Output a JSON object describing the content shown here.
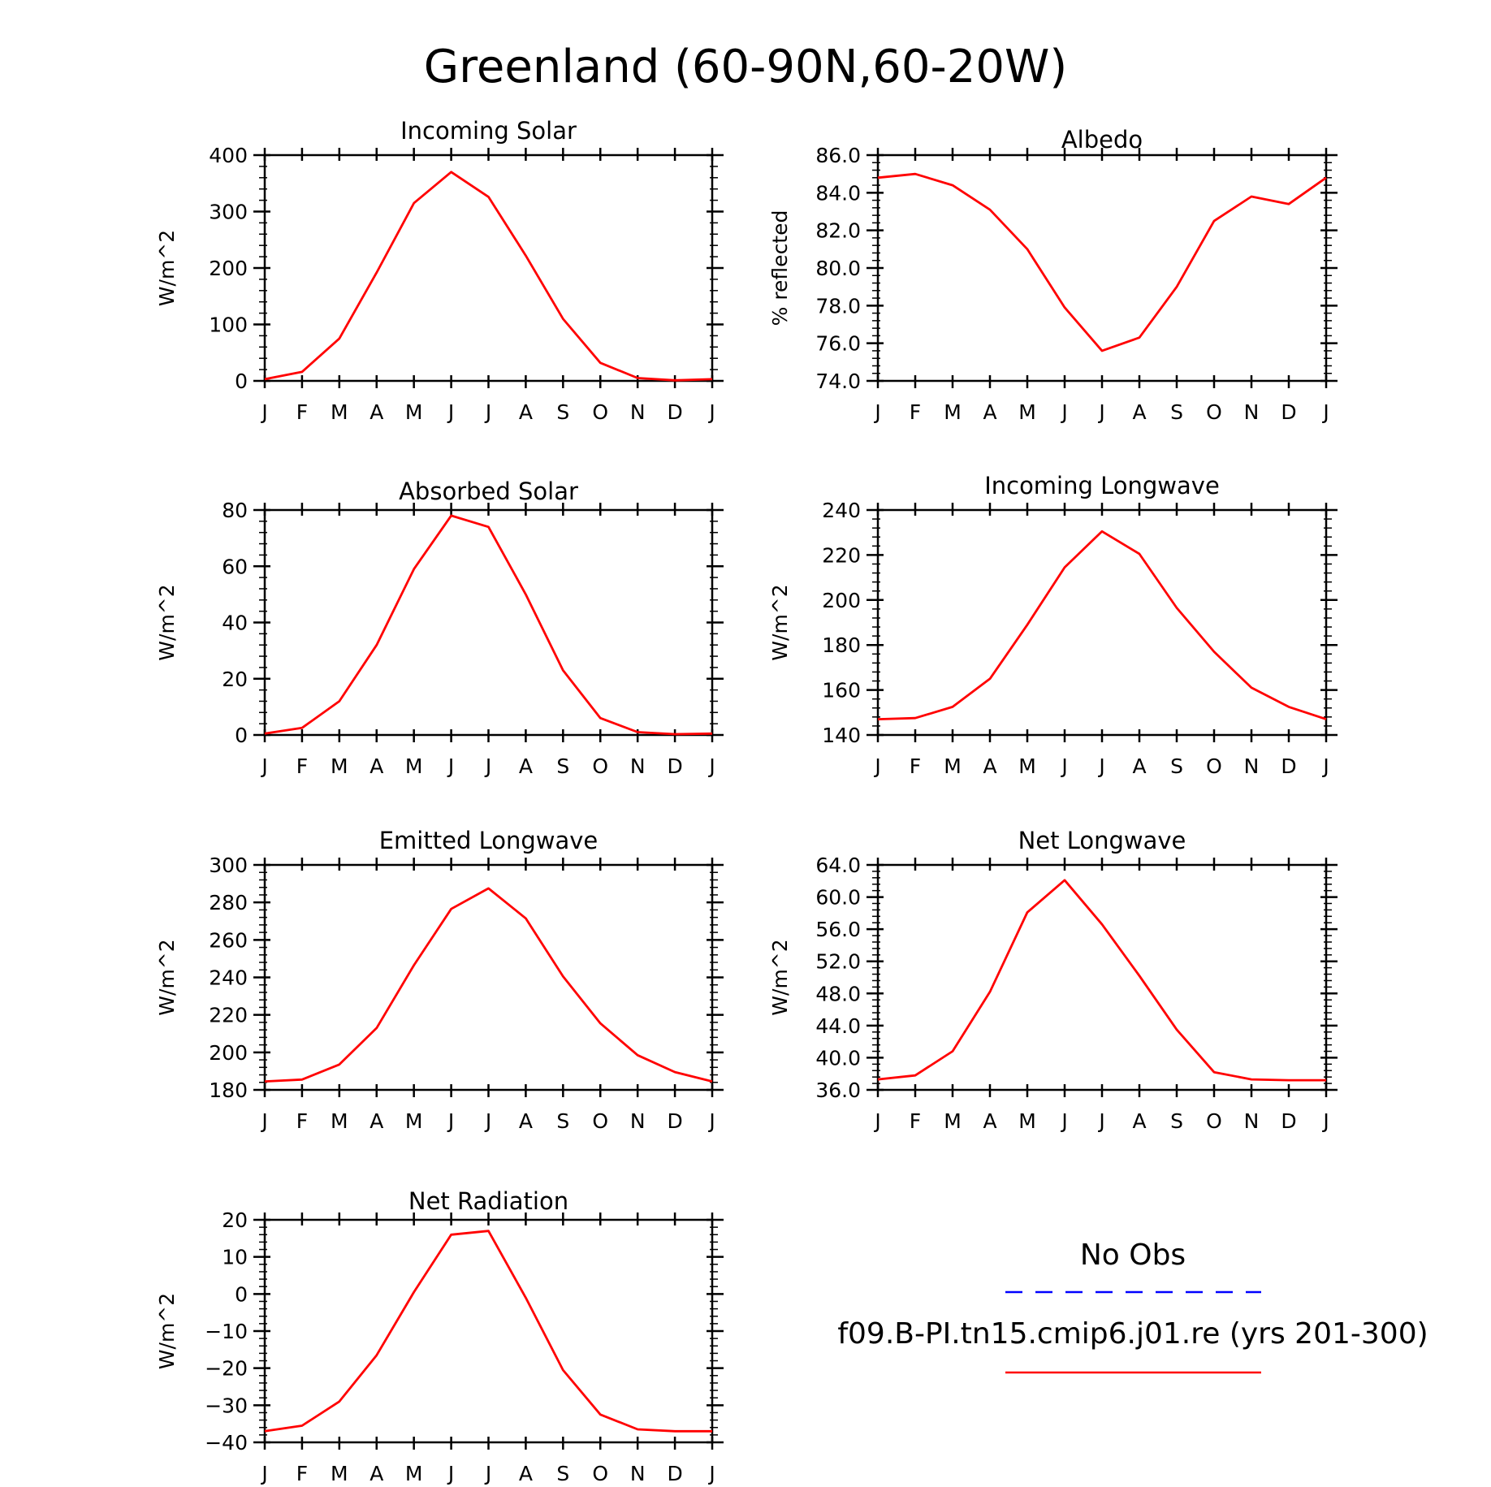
{
  "title": "Greenland (60-90N,60-20W)",
  "month_labels": [
    "J",
    "F",
    "M",
    "A",
    "M",
    "J",
    "J",
    "A",
    "S",
    "O",
    "N",
    "D",
    "J"
  ],
  "colors": {
    "model": "#ff0000",
    "obs": "#0000ff",
    "axes": "#000000"
  },
  "legend": {
    "obs_label": "No Obs",
    "model_label": "f09.B-PI.tn15.cmip6.j01.re (yrs 201-300)"
  },
  "chart_data": [
    {
      "type": "line",
      "title": "Incoming Solar",
      "ylabel": "W/m^2",
      "ylim": [
        0,
        400
      ],
      "yticks": [
        0,
        100,
        200,
        300,
        400
      ],
      "ytick_decimals": 0,
      "series": [
        {
          "values": [
            3,
            16,
            75,
            192,
            315,
            370,
            326,
            222,
            110,
            32,
            5,
            1,
            3
          ]
        }
      ]
    },
    {
      "type": "line",
      "title": "Albedo",
      "ylabel": "% reflected",
      "ylim": [
        74,
        86
      ],
      "yticks": [
        74,
        76,
        78,
        80,
        82,
        84,
        86
      ],
      "ytick_decimals": 1,
      "series": [
        {
          "values": [
            84.8,
            85.0,
            84.4,
            83.1,
            81.0,
            77.9,
            75.6,
            76.3,
            79.0,
            82.5,
            83.8,
            83.4,
            84.8
          ]
        }
      ]
    },
    {
      "type": "line",
      "title": "Absorbed Solar",
      "ylabel": "W/m^2",
      "ylim": [
        0,
        80
      ],
      "yticks": [
        0,
        20,
        40,
        60,
        80
      ],
      "ytick_decimals": 0,
      "series": [
        {
          "values": [
            0.5,
            2.5,
            12,
            32,
            59,
            78,
            74,
            50,
            23,
            6,
            1,
            0.3,
            0.5
          ]
        }
      ]
    },
    {
      "type": "line",
      "title": "Incoming Longwave",
      "ylabel": "W/m^2",
      "ylim": [
        140,
        240
      ],
      "yticks": [
        140,
        160,
        180,
        200,
        220,
        240
      ],
      "ytick_decimals": 0,
      "series": [
        {
          "values": [
            147,
            147.5,
            152.5,
            165,
            189,
            214.5,
            230.5,
            220.5,
            196.5,
            177,
            161,
            152.5,
            147
          ]
        }
      ]
    },
    {
      "type": "line",
      "title": "Emitted Longwave",
      "ylabel": "W/m^2",
      "ylim": [
        180,
        300
      ],
      "yticks": [
        180,
        200,
        220,
        240,
        260,
        280,
        300
      ],
      "ytick_decimals": 0,
      "series": [
        {
          "values": [
            184.5,
            185.5,
            193.5,
            213,
            246.5,
            276.5,
            287.5,
            271.5,
            240.5,
            215.5,
            198.5,
            189.5,
            184.5
          ]
        }
      ]
    },
    {
      "type": "line",
      "title": "Net Longwave",
      "ylabel": "W/m^2",
      "ylim": [
        36,
        64
      ],
      "yticks": [
        36,
        40,
        44,
        48,
        52,
        56,
        60,
        64
      ],
      "ytick_decimals": 1,
      "series": [
        {
          "values": [
            37.3,
            37.8,
            40.8,
            48.2,
            58.1,
            62.1,
            56.6,
            50.2,
            43.5,
            38.2,
            37.3,
            37.2,
            37.2
          ]
        }
      ]
    },
    {
      "type": "line",
      "title": "Net Radiation",
      "ylabel": "W/m^2",
      "ylim": [
        -40,
        20
      ],
      "yticks": [
        -40,
        -30,
        -20,
        -10,
        0,
        10,
        20
      ],
      "ytick_decimals": 0,
      "series": [
        {
          "values": [
            -37,
            -35.5,
            -29,
            -16.5,
            0.5,
            16,
            17,
            -1,
            -20.5,
            -32.5,
            -36.5,
            -37,
            -37
          ]
        }
      ]
    }
  ]
}
